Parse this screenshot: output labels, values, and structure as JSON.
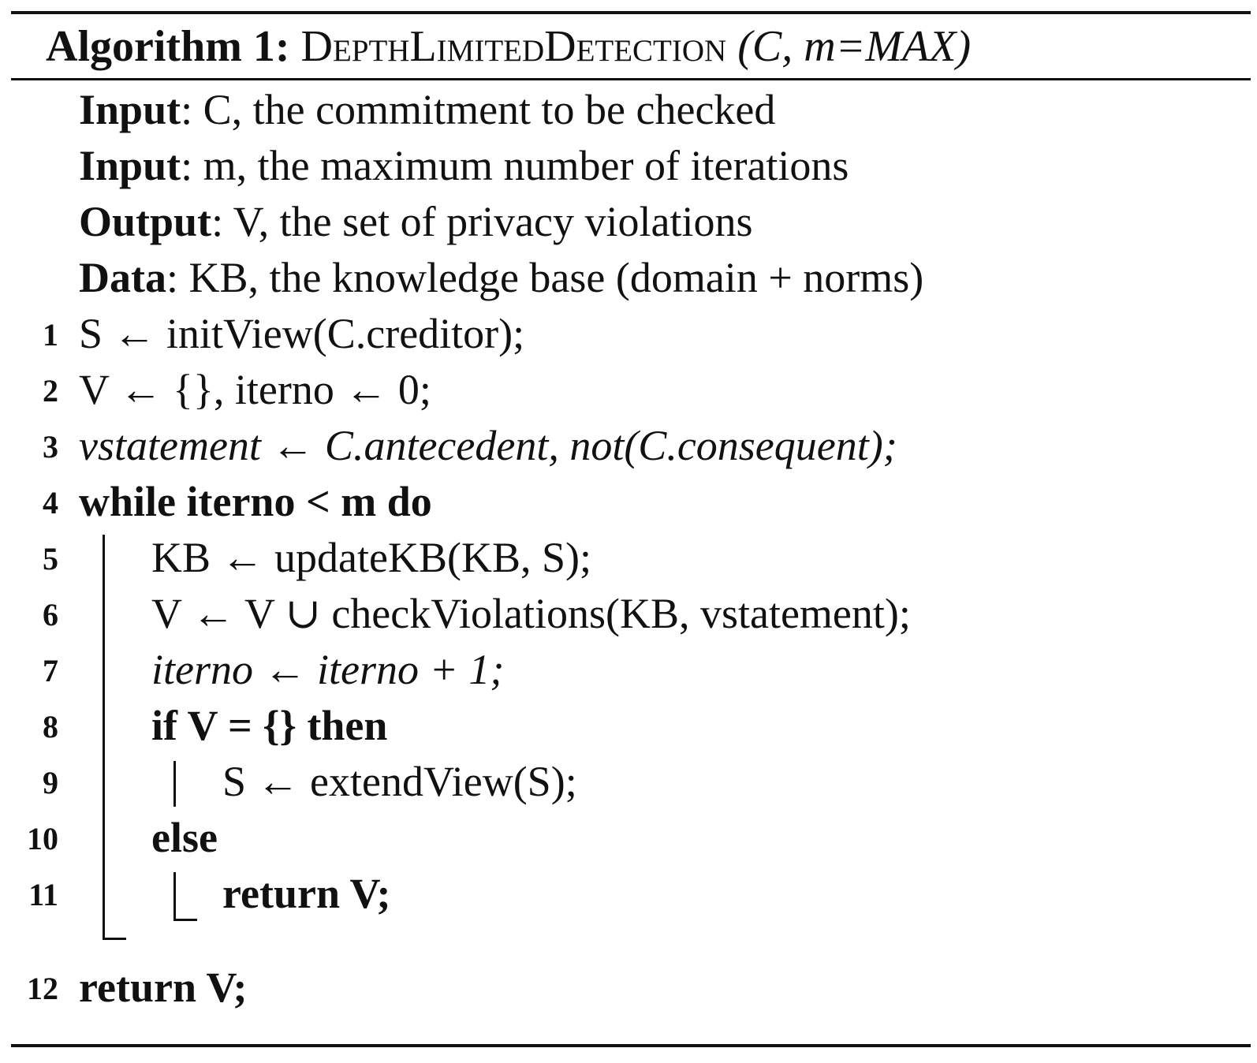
{
  "algorithm": {
    "label": "Algorithm 1:",
    "name": "DepthLimitedDetection",
    "params": "(C, m=MAX)"
  },
  "header": [
    {
      "key": "Input",
      "rest": ": C, the commitment to be checked"
    },
    {
      "key": "Input",
      "rest": ": m, the maximum number of iterations"
    },
    {
      "key": "Output",
      "rest": ": V, the set of privacy violations"
    },
    {
      "key": "Data",
      "rest": ": KB, the knowledge base (domain + norms)"
    }
  ],
  "lines": [
    {
      "n": "1",
      "code": "S ← initView(C.creditor);"
    },
    {
      "n": "2",
      "code": "V ← {}, iterno ← 0;"
    },
    {
      "n": "3",
      "code": "vstatement ← C.antecedent, not(C.consequent);"
    },
    {
      "n": "4",
      "code": "while iterno < m do"
    },
    {
      "n": "5",
      "code": "KB ← updateKB(KB, S);"
    },
    {
      "n": "6",
      "code": "V ← V ∪ checkViolations(KB, vstatement);"
    },
    {
      "n": "7",
      "code": "iterno ← iterno + 1;"
    },
    {
      "n": "8",
      "code": "if V = {} then"
    },
    {
      "n": "9",
      "code": "S ← extendView(S);"
    },
    {
      "n": "10",
      "code": "else"
    },
    {
      "n": "11",
      "code": "return V;"
    },
    {
      "n": "12",
      "code": "return V;"
    }
  ]
}
